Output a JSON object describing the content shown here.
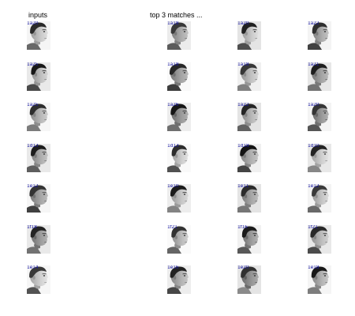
{
  "headings": {
    "inputs": "inputs",
    "matches": "top 3 matches ..."
  },
  "colors": {
    "background": "#ffffff",
    "label": "#1a1aa6"
  },
  "rows": [
    {
      "input": "1a20",
      "matches": [
        "1a18",
        "1a20",
        "1a22"
      ]
    },
    {
      "input": "1a25",
      "matches": [
        "1a18",
        "1a18",
        "1a21"
      ]
    },
    {
      "input": "1a25",
      "matches": [
        "1a26",
        "1a22",
        "1a20"
      ]
    },
    {
      "input": "1d13",
      "matches": [
        "1d13",
        "1d18",
        "1d10"
      ]
    },
    {
      "input": "1e12",
      "matches": [
        "1e10",
        "1e11",
        "1e12"
      ]
    },
    {
      "input": "1f18",
      "matches": [
        "1f21",
        "1f16",
        "1f21"
      ]
    },
    {
      "input": "1e14",
      "matches": [
        "1e16",
        "1e20",
        "1e18"
      ]
    }
  ]
}
